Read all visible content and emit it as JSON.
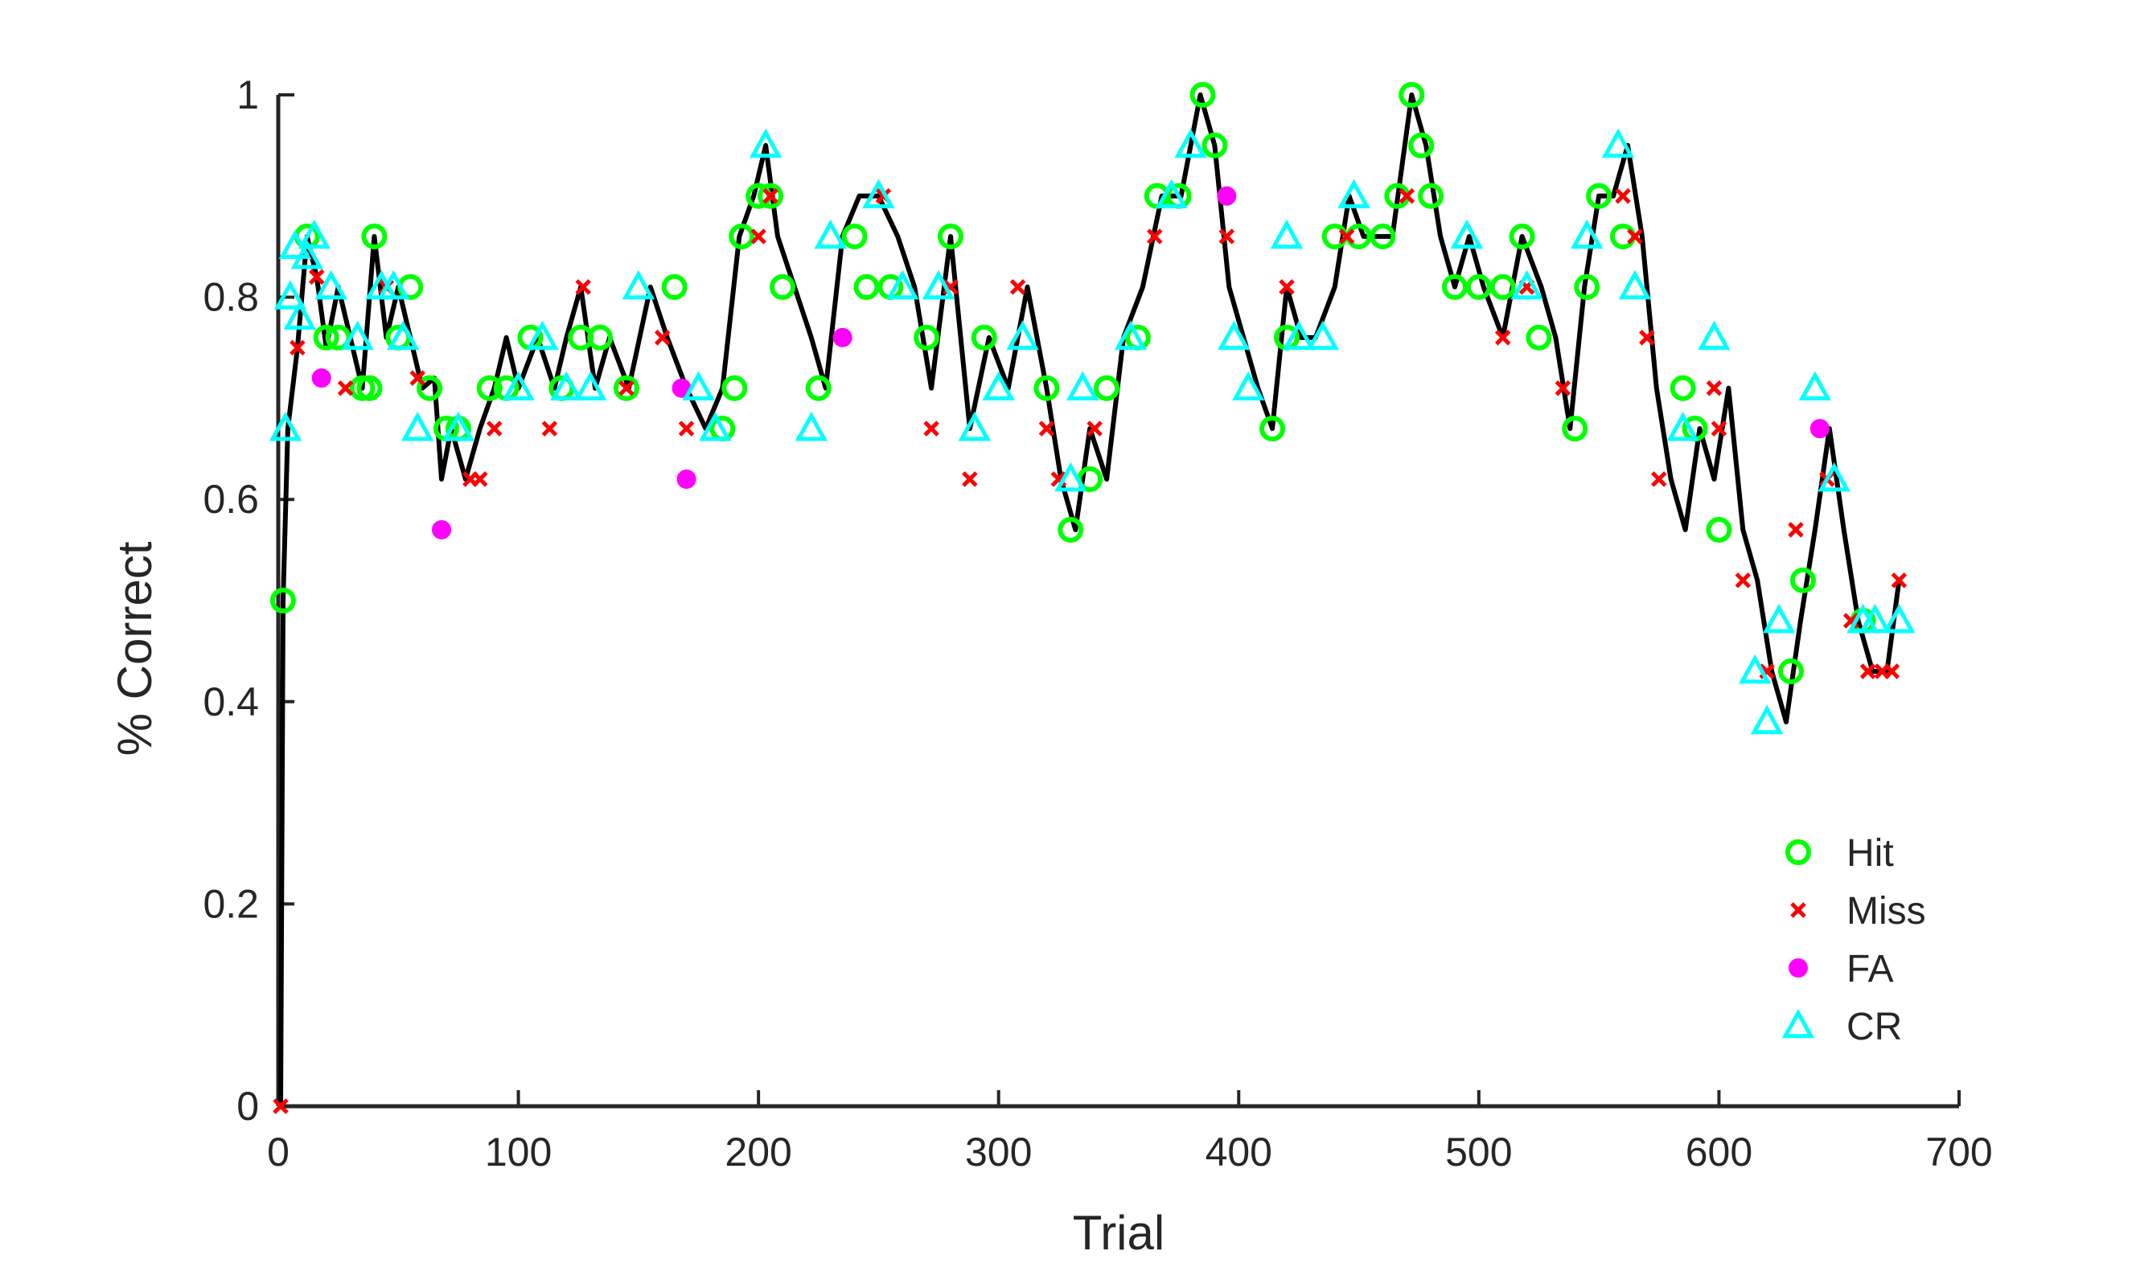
{
  "chart_data": {
    "type": "line",
    "xlabel": "Trial",
    "ylabel": "% Correct",
    "xlim": [
      0,
      700
    ],
    "ylim": [
      0,
      1
    ],
    "xticks": [
      0,
      100,
      200,
      300,
      400,
      500,
      600,
      700
    ],
    "yticks": [
      0,
      0.2,
      0.4,
      0.6,
      0.8,
      1
    ],
    "ytick_labels": [
      "0",
      "0.2",
      "0.4",
      "0.6",
      "0.8",
      "1"
    ],
    "grid": false,
    "legend_position": "bottom-right",
    "line_color": "#000000",
    "line": {
      "x": [
        1,
        2,
        4,
        8,
        12,
        16,
        20,
        25,
        30,
        35,
        40,
        45,
        50,
        55,
        60,
        65,
        68,
        72,
        78,
        84,
        90,
        95,
        100,
        108,
        115,
        120,
        126,
        132,
        138,
        146,
        155,
        162,
        170,
        178,
        185,
        192,
        198,
        203,
        208,
        215,
        222,
        228,
        235,
        242,
        250,
        258,
        265,
        272,
        280,
        288,
        296,
        304,
        312,
        320,
        326,
        332,
        338,
        345,
        352,
        360,
        368,
        376,
        384,
        390,
        396,
        402,
        408,
        414,
        420,
        426,
        432,
        440,
        446,
        452,
        458,
        464,
        472,
        478,
        484,
        490,
        496,
        502,
        510,
        518,
        526,
        532,
        538,
        544,
        550,
        556,
        562,
        568,
        574,
        580,
        586,
        592,
        598,
        604,
        610,
        616,
        622,
        628,
        634,
        640,
        646,
        652,
        658,
        664,
        670,
        675
      ],
      "y": [
        0.0,
        0.5,
        0.67,
        0.75,
        0.86,
        0.82,
        0.75,
        0.81,
        0.76,
        0.71,
        0.86,
        0.76,
        0.81,
        0.76,
        0.71,
        0.72,
        0.62,
        0.67,
        0.62,
        0.67,
        0.71,
        0.76,
        0.71,
        0.76,
        0.71,
        0.76,
        0.81,
        0.71,
        0.76,
        0.71,
        0.81,
        0.76,
        0.71,
        0.67,
        0.71,
        0.86,
        0.9,
        0.95,
        0.86,
        0.81,
        0.76,
        0.71,
        0.86,
        0.9,
        0.9,
        0.86,
        0.81,
        0.71,
        0.86,
        0.67,
        0.76,
        0.71,
        0.81,
        0.71,
        0.62,
        0.57,
        0.67,
        0.62,
        0.76,
        0.81,
        0.9,
        0.9,
        1.0,
        0.95,
        0.81,
        0.76,
        0.71,
        0.67,
        0.81,
        0.76,
        0.76,
        0.81,
        0.9,
        0.86,
        0.86,
        0.86,
        1.0,
        0.95,
        0.86,
        0.81,
        0.86,
        0.81,
        0.76,
        0.86,
        0.81,
        0.76,
        0.67,
        0.81,
        0.9,
        0.9,
        0.95,
        0.86,
        0.71,
        0.62,
        0.57,
        0.67,
        0.62,
        0.71,
        0.57,
        0.52,
        0.43,
        0.38,
        0.48,
        0.57,
        0.67,
        0.57,
        0.48,
        0.43,
        0.43,
        0.52
      ]
    },
    "series": [
      {
        "name": "Hit",
        "marker": "open-circle",
        "color": "#00ff00",
        "x": [
          2,
          12,
          20,
          25,
          35,
          38,
          40,
          50,
          55,
          63,
          70,
          75,
          88,
          95,
          105,
          118,
          126,
          134,
          145,
          165,
          185,
          190,
          193,
          200,
          205,
          210,
          225,
          240,
          245,
          255,
          270,
          280,
          294,
          320,
          330,
          338,
          345,
          358,
          366,
          375,
          385,
          390,
          414,
          420,
          440,
          450,
          460,
          466,
          472,
          476,
          480,
          490,
          500,
          510,
          518,
          525,
          540,
          545,
          550,
          560,
          585,
          590,
          600,
          630,
          635,
          660
        ],
        "y": [
          0.5,
          0.86,
          0.76,
          0.76,
          0.71,
          0.71,
          0.86,
          0.76,
          0.81,
          0.71,
          0.67,
          0.67,
          0.71,
          0.71,
          0.76,
          0.71,
          0.76,
          0.76,
          0.71,
          0.81,
          0.67,
          0.71,
          0.86,
          0.9,
          0.9,
          0.81,
          0.71,
          0.86,
          0.81,
          0.81,
          0.76,
          0.86,
          0.76,
          0.71,
          0.57,
          0.62,
          0.71,
          0.76,
          0.9,
          0.9,
          1.0,
          0.95,
          0.67,
          0.76,
          0.86,
          0.86,
          0.86,
          0.9,
          1.0,
          0.95,
          0.9,
          0.81,
          0.81,
          0.81,
          0.86,
          0.76,
          0.67,
          0.81,
          0.9,
          0.86,
          0.71,
          0.67,
          0.57,
          0.43,
          0.52,
          0.48
        ]
      },
      {
        "name": "Miss",
        "marker": "x",
        "color": "#ff0000",
        "x": [
          1,
          8,
          16,
          28,
          45,
          58,
          80,
          84,
          90,
          113,
          127,
          145,
          160,
          170,
          200,
          205,
          235,
          252,
          272,
          280,
          288,
          308,
          320,
          325,
          340,
          365,
          395,
          420,
          445,
          470,
          510,
          520,
          535,
          560,
          565,
          570,
          575,
          598,
          600,
          610,
          620,
          632,
          645,
          655,
          662,
          668,
          672,
          675
        ],
        "y": [
          0.0,
          0.75,
          0.82,
          0.71,
          0.81,
          0.72,
          0.62,
          0.62,
          0.67,
          0.67,
          0.81,
          0.71,
          0.76,
          0.67,
          0.86,
          0.9,
          0.76,
          0.9,
          0.67,
          0.81,
          0.62,
          0.81,
          0.67,
          0.62,
          0.67,
          0.86,
          0.86,
          0.81,
          0.86,
          0.9,
          0.76,
          0.81,
          0.71,
          0.9,
          0.86,
          0.76,
          0.62,
          0.71,
          0.67,
          0.52,
          0.43,
          0.57,
          0.62,
          0.48,
          0.43,
          0.43,
          0.43,
          0.52
        ]
      },
      {
        "name": "FA",
        "marker": "filled-circle",
        "color": "#ff00ff",
        "x": [
          18,
          68,
          168,
          170,
          235,
          395,
          642
        ],
        "y": [
          0.72,
          0.57,
          0.71,
          0.62,
          0.76,
          0.9,
          0.67
        ]
      },
      {
        "name": "CR",
        "marker": "open-triangle",
        "color": "#00ffff",
        "x": [
          3,
          5,
          7,
          9,
          12,
          15,
          22,
          33,
          43,
          48,
          52,
          58,
          75,
          100,
          110,
          120,
          130,
          150,
          175,
          182,
          203,
          222,
          230,
          250,
          260,
          275,
          290,
          300,
          310,
          330,
          335,
          355,
          372,
          380,
          398,
          404,
          420,
          425,
          435,
          448,
          495,
          520,
          545,
          558,
          565,
          585,
          598,
          615,
          620,
          625,
          640,
          648,
          660,
          665,
          675
        ],
        "y": [
          0.67,
          0.8,
          0.85,
          0.78,
          0.84,
          0.86,
          0.81,
          0.76,
          0.81,
          0.81,
          0.76,
          0.67,
          0.67,
          0.71,
          0.76,
          0.71,
          0.71,
          0.81,
          0.71,
          0.67,
          0.95,
          0.67,
          0.86,
          0.9,
          0.81,
          0.81,
          0.67,
          0.71,
          0.76,
          0.62,
          0.71,
          0.76,
          0.9,
          0.95,
          0.76,
          0.71,
          0.86,
          0.76,
          0.76,
          0.9,
          0.86,
          0.81,
          0.86,
          0.95,
          0.81,
          0.67,
          0.76,
          0.43,
          0.38,
          0.48,
          0.71,
          0.62,
          0.48,
          0.48,
          0.48
        ]
      }
    ]
  }
}
